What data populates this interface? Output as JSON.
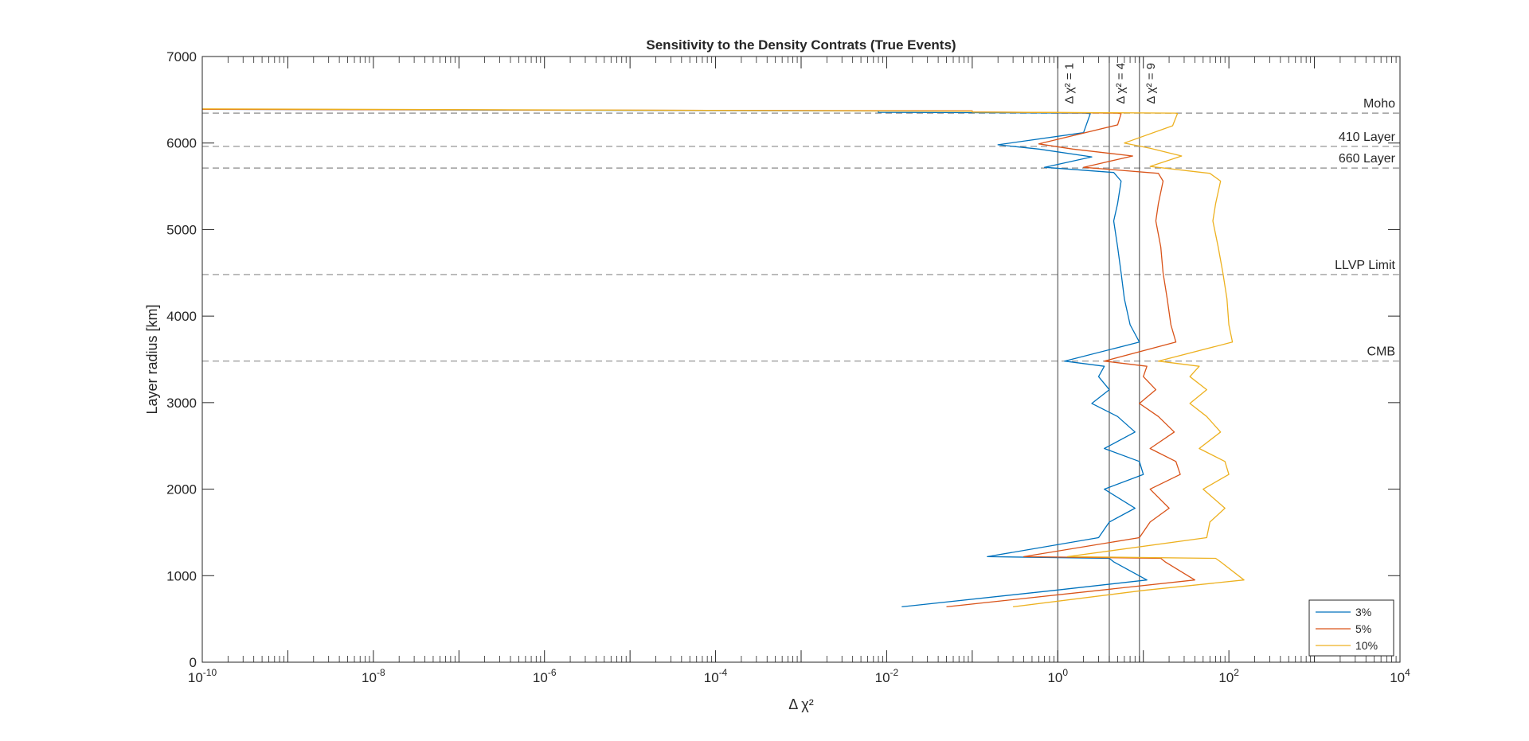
{
  "chart_data": {
    "type": "line",
    "title": "Sensitivity to the Density Contrats (True Events)",
    "xlabel": "Δ χ²",
    "ylabel": "Layer radius [km]",
    "xscale": "log",
    "xlim": [
      1e-10,
      10000
    ],
    "ylim": [
      0,
      7000
    ],
    "x_ticks": [
      {
        "base": "10",
        "exp": "-10",
        "value": 1e-10
      },
      {
        "base": "10",
        "exp": "-8",
        "value": 1e-08
      },
      {
        "base": "10",
        "exp": "-6",
        "value": 1e-06
      },
      {
        "base": "10",
        "exp": "-4",
        "value": 0.0001
      },
      {
        "base": "10",
        "exp": "-2",
        "value": 0.01
      },
      {
        "base": "10",
        "exp": "0",
        "value": 1
      },
      {
        "base": "10",
        "exp": "2",
        "value": 100
      },
      {
        "base": "10",
        "exp": "4",
        "value": 10000
      }
    ],
    "y_ticks": [
      "0",
      "1000",
      "2000",
      "3000",
      "4000",
      "5000",
      "6000",
      "7000"
    ],
    "grid": false,
    "legend_position": "bottom-right",
    "threshold_lines": [
      {
        "x": 1,
        "label": "Δ χ² = 1"
      },
      {
        "x": 4,
        "label": "Δ χ² = 4"
      },
      {
        "x": 9,
        "label": "Δ χ² = 9"
      }
    ],
    "reference_lines": [
      {
        "y": 6346,
        "label": "Moho"
      },
      {
        "y": 5961,
        "label": "410 Layer"
      },
      {
        "y": 5711,
        "label": "660 Layer"
      },
      {
        "y": 4480,
        "label": "LLVP Limit"
      },
      {
        "y": 3480,
        "label": "CMB"
      }
    ],
    "series": [
      {
        "name": "3%",
        "color": "#0072BD",
        "points": [
          [
            1e-10,
            6390
          ],
          [
            0.008,
            6370
          ],
          [
            0.008,
            6355
          ],
          [
            2.1,
            6346
          ],
          [
            2.4,
            6340
          ],
          [
            2.0,
            6120
          ],
          [
            0.2,
            5980
          ],
          [
            0.6,
            5930
          ],
          [
            2.5,
            5840
          ],
          [
            0.7,
            5720
          ],
          [
            4.5,
            5660
          ],
          [
            5.5,
            5560
          ],
          [
            5.0,
            5300
          ],
          [
            4.5,
            5100
          ],
          [
            5.0,
            4800
          ],
          [
            5.5,
            4500
          ],
          [
            6.0,
            4200
          ],
          [
            7.0,
            3900
          ],
          [
            9.0,
            3700
          ],
          [
            1.2,
            3480
          ],
          [
            3.5,
            3420
          ],
          [
            3.0,
            3300
          ],
          [
            4.0,
            3150
          ],
          [
            2.5,
            2990
          ],
          [
            5.0,
            2840
          ],
          [
            8.0,
            2660
          ],
          [
            3.5,
            2470
          ],
          [
            9.0,
            2320
          ],
          [
            10.0,
            2170
          ],
          [
            3.5,
            2000
          ],
          [
            8.0,
            1780
          ],
          [
            4.0,
            1620
          ],
          [
            3.0,
            1440
          ],
          [
            0.15,
            1220
          ],
          [
            4.0,
            1200
          ],
          [
            4.5,
            1160
          ],
          [
            11.0,
            950
          ],
          [
            0.9,
            830
          ],
          [
            0.015,
            640
          ]
        ]
      },
      {
        "name": "5%",
        "color": "#D95319",
        "points": [
          [
            1e-10,
            6390
          ],
          [
            0.1,
            6372
          ],
          [
            0.1,
            6360
          ],
          [
            5.0,
            6346
          ],
          [
            5.5,
            6340
          ],
          [
            5.0,
            6210
          ],
          [
            0.6,
            5990
          ],
          [
            1.5,
            5930
          ],
          [
            7.5,
            5850
          ],
          [
            2.0,
            5720
          ],
          [
            15.0,
            5650
          ],
          [
            17.0,
            5560
          ],
          [
            15.0,
            5300
          ],
          [
            14.0,
            5100
          ],
          [
            16.0,
            4800
          ],
          [
            17.0,
            4500
          ],
          [
            19.0,
            4200
          ],
          [
            21.0,
            3900
          ],
          [
            24.0,
            3700
          ],
          [
            3.5,
            3480
          ],
          [
            11.0,
            3420
          ],
          [
            10.0,
            3300
          ],
          [
            14.0,
            3150
          ],
          [
            9.0,
            2990
          ],
          [
            15.0,
            2840
          ],
          [
            23.0,
            2660
          ],
          [
            12.0,
            2470
          ],
          [
            24.0,
            2320
          ],
          [
            27.0,
            2170
          ],
          [
            12.0,
            2000
          ],
          [
            20.0,
            1780
          ],
          [
            12.0,
            1620
          ],
          [
            9.0,
            1440
          ],
          [
            0.4,
            1220
          ],
          [
            16.0,
            1200
          ],
          [
            18.0,
            1160
          ],
          [
            40.0,
            950
          ],
          [
            3.0,
            830
          ],
          [
            0.05,
            640
          ]
        ]
      },
      {
        "name": "10%",
        "color": "#EDB120",
        "points": [
          [
            1e-10,
            6395
          ],
          [
            0.1,
            6368
          ],
          [
            0.1,
            6358
          ],
          [
            24.0,
            6346
          ],
          [
            25.0,
            6340
          ],
          [
            22.0,
            6200
          ],
          [
            6.0,
            6000
          ],
          [
            12.0,
            5940
          ],
          [
            28.0,
            5850
          ],
          [
            12.0,
            5730
          ],
          [
            60.0,
            5650
          ],
          [
            80.0,
            5560
          ],
          [
            70.0,
            5300
          ],
          [
            65.0,
            5100
          ],
          [
            75.0,
            4800
          ],
          [
            85.0,
            4500
          ],
          [
            95.0,
            4200
          ],
          [
            100.0,
            3900
          ],
          [
            110.0,
            3700
          ],
          [
            15.0,
            3480
          ],
          [
            45.0,
            3420
          ],
          [
            35.0,
            3300
          ],
          [
            55.0,
            3150
          ],
          [
            35.0,
            2990
          ],
          [
            55.0,
            2840
          ],
          [
            80.0,
            2660
          ],
          [
            45.0,
            2470
          ],
          [
            90.0,
            2320
          ],
          [
            100.0,
            2170
          ],
          [
            50.0,
            2000
          ],
          [
            90.0,
            1780
          ],
          [
            60.0,
            1620
          ],
          [
            55.0,
            1440
          ],
          [
            1.3,
            1220
          ],
          [
            70.0,
            1200
          ],
          [
            80.0,
            1160
          ],
          [
            150.0,
            950
          ],
          [
            10.0,
            830
          ],
          [
            0.3,
            640
          ]
        ]
      }
    ]
  }
}
